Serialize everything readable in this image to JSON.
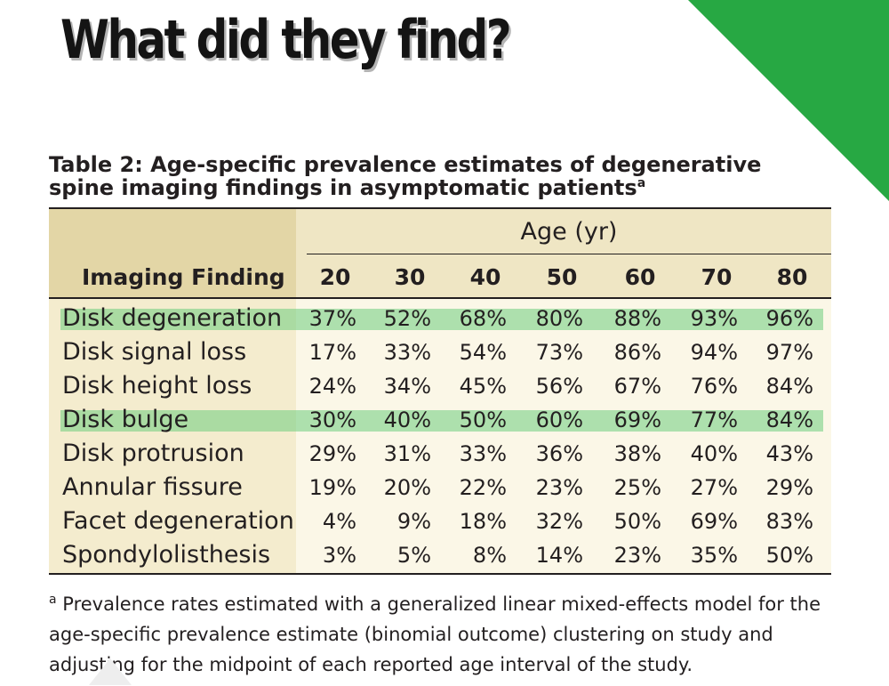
{
  "headline": "What did they find?",
  "accent_color": "#27a843",
  "highlight_color": "#6ecd7d",
  "table": {
    "title": "Table 2: Age-specific prevalence estimates of degenerative spine imaging findings in asymptomatic patients",
    "title_marker": "a",
    "age_header": "Age (yr)",
    "finding_header": "Imaging Finding",
    "ages": [
      "20",
      "30",
      "40",
      "50",
      "60",
      "70",
      "80"
    ],
    "rows": [
      {
        "label": "Disk degeneration",
        "values": [
          "37%",
          "52%",
          "68%",
          "80%",
          "88%",
          "93%",
          "96%"
        ],
        "highlighted": true
      },
      {
        "label": "Disk signal loss",
        "values": [
          "17%",
          "33%",
          "54%",
          "73%",
          "86%",
          "94%",
          "97%"
        ],
        "highlighted": false
      },
      {
        "label": "Disk height loss",
        "values": [
          "24%",
          "34%",
          "45%",
          "56%",
          "67%",
          "76%",
          "84%"
        ],
        "highlighted": false
      },
      {
        "label": "Disk bulge",
        "values": [
          "30%",
          "40%",
          "50%",
          "60%",
          "69%",
          "77%",
          "84%"
        ],
        "highlighted": true
      },
      {
        "label": "Disk protrusion",
        "values": [
          "29%",
          "31%",
          "33%",
          "36%",
          "38%",
          "40%",
          "43%"
        ],
        "highlighted": false
      },
      {
        "label": "Annular fissure",
        "values": [
          "19%",
          "20%",
          "22%",
          "23%",
          "25%",
          "27%",
          "29%"
        ],
        "highlighted": false
      },
      {
        "label": "Facet degeneration",
        "values": [
          "4%",
          "9%",
          "18%",
          "32%",
          "50%",
          "69%",
          "83%"
        ],
        "highlighted": false
      },
      {
        "label": "Spondylolisthesis",
        "values": [
          "3%",
          "5%",
          "8%",
          "14%",
          "23%",
          "35%",
          "50%"
        ],
        "highlighted": false
      }
    ],
    "footnote_marker": "a",
    "footnote": "Prevalence rates estimated with a generalized linear mixed-effects model for the age-specific prevalence estimate (binomial outcome) clustering on study and adjusting for the midpoint of each reported age interval of the study."
  }
}
